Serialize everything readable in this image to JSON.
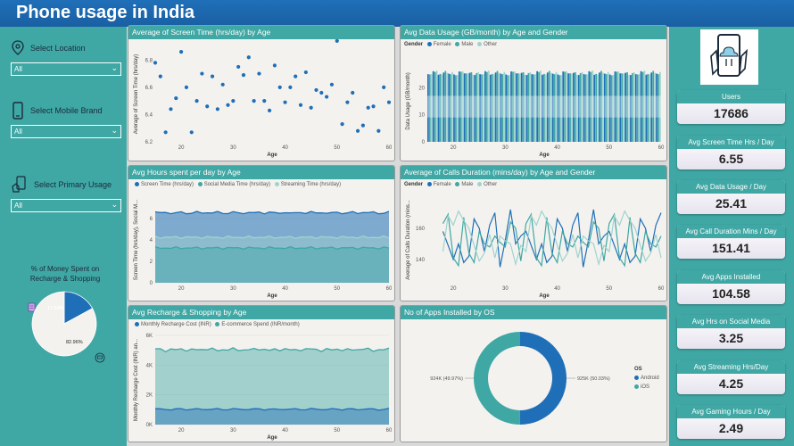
{
  "header": {
    "title": "Phone usage in India"
  },
  "filters": [
    {
      "label": "Select Location",
      "value": "All",
      "icon": "location-pin-icon"
    },
    {
      "label": "Select Mobile Brand",
      "value": "All",
      "icon": "phone-icon"
    },
    {
      "label": "Select Primary Usage",
      "value": "All",
      "icon": "hand-phone-icon"
    }
  ],
  "money_pie": {
    "title": "% of Money Spent on Recharge & Shopping",
    "slices": [
      {
        "label": "17.04%",
        "value": 17.04,
        "color": "#1f6fb8"
      },
      {
        "label": "82.96%",
        "value": 82.96,
        "color": "#f4f2ee"
      }
    ]
  },
  "kpis": [
    {
      "label": "Users",
      "value": "17686"
    },
    {
      "label": "Avg Screen Time Hrs / Day",
      "value": "6.55"
    },
    {
      "label": "Avg Data Usage / Day",
      "value": "25.41"
    },
    {
      "label": "Avg Call Duration Mins / Day",
      "value": "151.41"
    },
    {
      "label": "Avg Apps Installed",
      "value": "104.58"
    },
    {
      "label": "Avg Hrs on Social Media",
      "value": "3.25"
    },
    {
      "label": "Avg Streaming Hrs/Day",
      "value": "4.25"
    },
    {
      "label": "Avg Gaming Hours / Day",
      "value": "2.49"
    }
  ],
  "charts": {
    "screen_time": {
      "title": "Average of Screen Time (hrs/day) by Age"
    },
    "data_usage": {
      "title": "Avg Data Usage (GB/month) by Age and Gender",
      "legend_title": "Gender",
      "legend": [
        "Female",
        "Male",
        "Other"
      ]
    },
    "hours": {
      "title": "Avg Hours spent per day by Age",
      "legend": [
        "Screen Time (hrs/day)",
        "Social Media Time (hrs/day)",
        "Streaming Time (hrs/day)"
      ]
    },
    "calls": {
      "title": "Average of Calls Duration (mins/day) by Age and Gender",
      "legend_title": "Gender",
      "legend": [
        "Female",
        "Male",
        "Other"
      ]
    },
    "recharge": {
      "title": "Avg Recharge & Shopping by Age",
      "legend": [
        "Monthly Recharge Cost (INR)",
        "E-commerce Spend (INR/month)"
      ]
    },
    "apps": {
      "title": "No of Apps Installed by OS",
      "legend_title": "OS",
      "legend": [
        "Android",
        "iOS"
      ]
    }
  },
  "chart_data": [
    {
      "type": "scatter",
      "title": "Average of Screen Time (hrs/day) by Age",
      "xlabel": "Age",
      "ylabel": "Average of Screen Time (hrs/day)",
      "xlim": [
        15,
        60
      ],
      "ylim": [
        6.2,
        6.9
      ],
      "xticks": [
        20,
        30,
        40,
        50,
        60
      ],
      "yticks": [
        6.2,
        6.4,
        6.6,
        6.8
      ],
      "x": [
        15,
        16,
        17,
        18,
        19,
        20,
        21,
        22,
        23,
        24,
        25,
        26,
        27,
        28,
        29,
        30,
        31,
        32,
        33,
        34,
        35,
        36,
        37,
        38,
        39,
        40,
        41,
        42,
        43,
        44,
        45,
        46,
        47,
        48,
        49,
        50,
        51,
        52,
        53,
        54,
        55,
        56,
        57,
        58,
        59,
        60
      ],
      "y": [
        6.78,
        6.68,
        6.27,
        6.44,
        6.52,
        6.86,
        6.6,
        6.27,
        6.5,
        6.7,
        6.46,
        6.68,
        6.44,
        6.62,
        6.47,
        6.5,
        6.75,
        6.69,
        6.82,
        6.5,
        6.7,
        6.5,
        6.43,
        6.76,
        6.6,
        6.49,
        6.6,
        6.68,
        6.47,
        6.71,
        6.45,
        6.58,
        6.56,
        6.53,
        6.62,
        6.94,
        6.33,
        6.49,
        6.56,
        6.28,
        6.32,
        6.45,
        6.46,
        6.28,
        6.6,
        6.49
      ]
    },
    {
      "type": "bar",
      "title": "Avg Data Usage (GB/month) by Age and Gender",
      "xlabel": "Age",
      "ylabel": "Data Usage (GB/month)",
      "xlim": [
        15,
        60
      ],
      "ylim": [
        0,
        30
      ],
      "xticks": [
        20,
        30,
        40,
        50,
        60
      ],
      "yticks": [
        0,
        10,
        20
      ],
      "series": [
        {
          "name": "Female",
          "values": [
            25.0,
            26.1,
            24.8,
            25.6,
            25.2,
            24.9,
            26.0,
            25.3,
            25.5,
            24.7
          ]
        },
        {
          "name": "Male",
          "values": [
            25.4,
            24.9,
            25.8,
            25.1,
            26.2,
            25.0,
            24.6,
            25.9,
            25.3,
            25.7
          ]
        },
        {
          "name": "Other",
          "values": [
            24.8,
            25.7,
            25.0,
            26.3,
            24.9,
            25.5,
            25.8,
            24.7,
            26.0,
            25.2
          ]
        }
      ]
    },
    {
      "type": "area",
      "title": "Avg Hours spent per day by Age",
      "xlabel": "Age",
      "ylabel": "Screen Time (hrs/day), Social M...",
      "xlim": [
        15,
        60
      ],
      "ylim": [
        0,
        8
      ],
      "xticks": [
        20,
        30,
        40,
        50,
        60
      ],
      "yticks": [
        0,
        2,
        4,
        6
      ],
      "series": [
        {
          "name": "Screen Time (hrs/day)",
          "values": [
            6.6,
            6.5,
            6.6,
            6.5,
            6.5,
            6.6,
            6.5,
            6.5,
            6.6,
            6.5
          ]
        },
        {
          "name": "Social Media Time (hrs/day)",
          "values": [
            3.3,
            3.2,
            3.3,
            3.2,
            3.3,
            3.2,
            3.3,
            3.2,
            3.3,
            3.2
          ]
        },
        {
          "name": "Streaming Time (hrs/day)",
          "values": [
            4.3,
            4.2,
            4.3,
            4.2,
            4.3,
            4.2,
            4.3,
            4.2,
            4.3,
            4.2
          ]
        }
      ]
    },
    {
      "type": "line",
      "title": "Average of Calls Duration (mins/day) by Age and Gender",
      "xlabel": "Age",
      "ylabel": "Average of Calls Duration (mins...",
      "xlim": [
        15,
        60
      ],
      "ylim": [
        125,
        180
      ],
      "xticks": [
        20,
        30,
        40,
        50,
        60
      ],
      "yticks": [
        140,
        160
      ],
      "series": [
        {
          "name": "Female",
          "values": [
            150,
            162,
            138,
            155,
            170,
            142,
            158,
            135,
            166,
            149,
            152,
            160,
            140,
            172,
            145,
            150
          ]
        },
        {
          "name": "Male",
          "values": [
            158,
            141,
            164,
            150,
            136,
            160,
            148,
            167,
            139,
            155,
            144,
            163,
            151,
            138,
            169,
            148
          ]
        },
        {
          "name": "Other",
          "values": [
            145,
            155,
            149,
            168,
            152,
            139,
            162,
            150,
            144,
            171,
            137,
            156,
            165,
            149,
            141,
            160
          ]
        }
      ]
    },
    {
      "type": "area",
      "title": "Avg Recharge & Shopping by Age",
      "xlabel": "Age",
      "ylabel": "Monthly Recharge Cost (INR) an...",
      "xlim": [
        15,
        60
      ],
      "ylim": [
        0,
        6000
      ],
      "xticks": [
        20,
        30,
        40,
        50,
        60
      ],
      "yticks": [
        0,
        2000,
        4000,
        6000
      ],
      "series": [
        {
          "name": "Monthly Recharge Cost (INR)",
          "values": [
            1050,
            1020,
            1040,
            1010,
            1030,
            1050,
            1020,
            1040,
            1030,
            1020
          ]
        },
        {
          "name": "E-commerce Spend (INR/month)",
          "values": [
            5050,
            5100,
            4950,
            5080,
            5000,
            5120,
            4980,
            5060,
            5010,
            5090
          ]
        }
      ]
    },
    {
      "type": "pie",
      "title": "No of Apps Installed by OS",
      "legend_title": "OS",
      "categories": [
        "Android",
        "iOS"
      ],
      "values": [
        925,
        924
      ],
      "labels": [
        "925K (50.03%)",
        "924K (49.97%)"
      ],
      "colors": [
        "#1f6fb8",
        "#3fa7a4"
      ]
    }
  ],
  "colors": {
    "teal": "#3fa7a4",
    "blue": "#1f6fb8",
    "light_teal": "#9fd3cf",
    "panel": "#f4f2ee"
  }
}
